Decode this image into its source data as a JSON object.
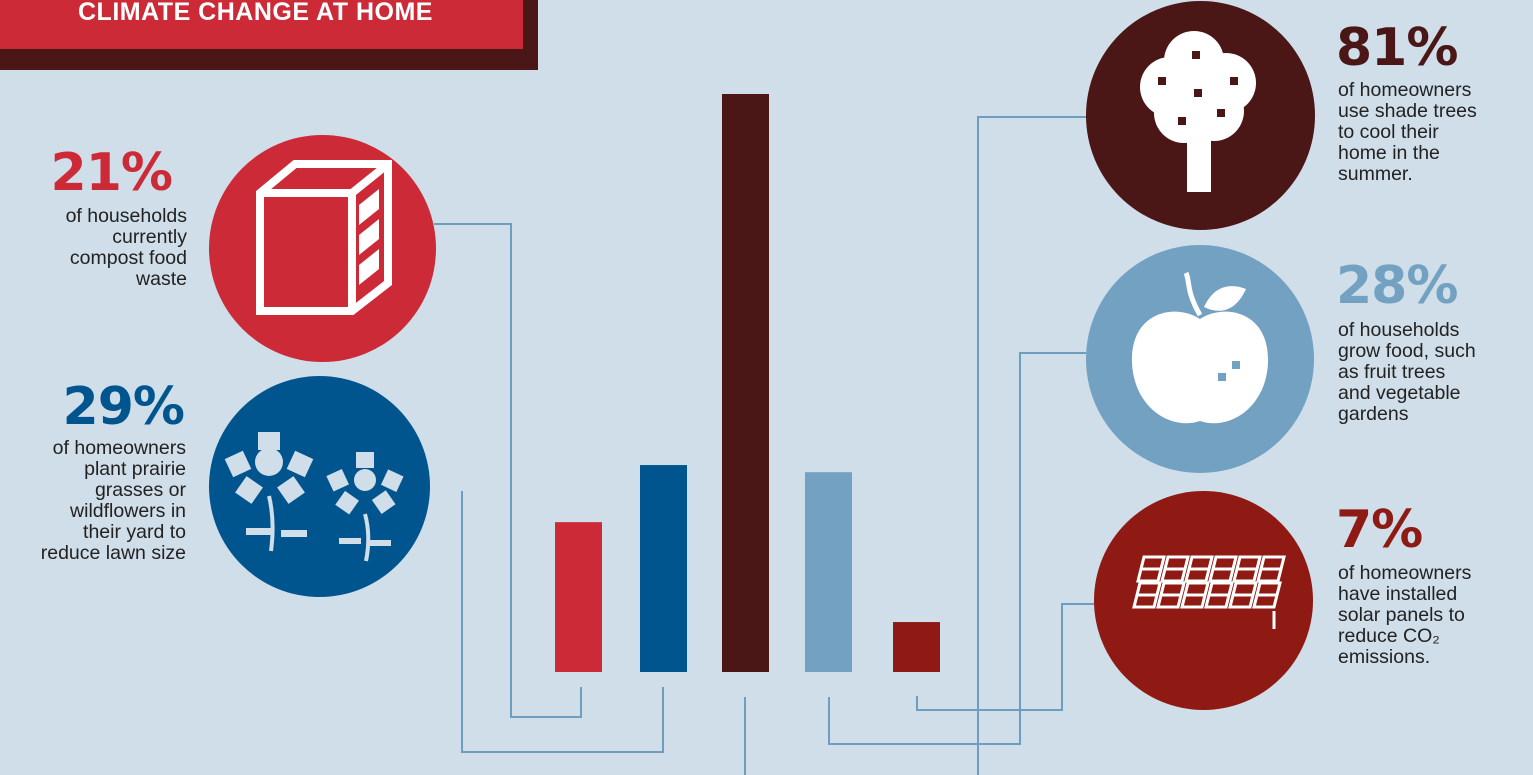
{
  "banner": {
    "title": "CLIMATE CHANGE AT HOME"
  },
  "stats": {
    "compost": {
      "percent": "21%",
      "lines": [
        "of households",
        "currently",
        "compost food",
        "waste"
      ],
      "icon": "compost-bin-icon",
      "icon_letter": "C",
      "color": "#cc2a37"
    },
    "prairie": {
      "percent": "29%",
      "lines": [
        "of homeowners",
        "plant prairie",
        "grasses or",
        "wildflowers in",
        "their yard to",
        "reduce lawn size"
      ],
      "icon": "wildflower-icon",
      "color": "#00558f"
    },
    "shade": {
      "percent": "81%",
      "lines": [
        "of homeowners",
        "use shade trees",
        "to cool their",
        "home in the",
        "summer."
      ],
      "icon": "tree-icon",
      "color": "#4a1616"
    },
    "food": {
      "percent": "28%",
      "lines": [
        "of households",
        "grow food, such",
        "as fruit trees",
        "and vegetable",
        "gardens"
      ],
      "icon": "apple-icon",
      "color": "#73a1c2"
    },
    "solar": {
      "percent": "7%",
      "lines": [
        "of homeowners",
        "have installed",
        "solar panels to",
        "reduce CO₂",
        "emissions."
      ],
      "icon": "solar-panel-icon",
      "color": "#8f1a14"
    }
  },
  "chart_data": {
    "type": "bar",
    "categories": [
      "Compost food waste",
      "Prairie grasses or wildflowers",
      "Shade trees",
      "Grow food",
      "Solar panels"
    ],
    "values": [
      21,
      29,
      81,
      28,
      7
    ],
    "colors": [
      "#cc2a37",
      "#00558f",
      "#4a1616",
      "#73a1c2",
      "#8f1a14"
    ],
    "ylim": [
      0,
      81
    ],
    "grid": false,
    "axis_labels": false
  }
}
